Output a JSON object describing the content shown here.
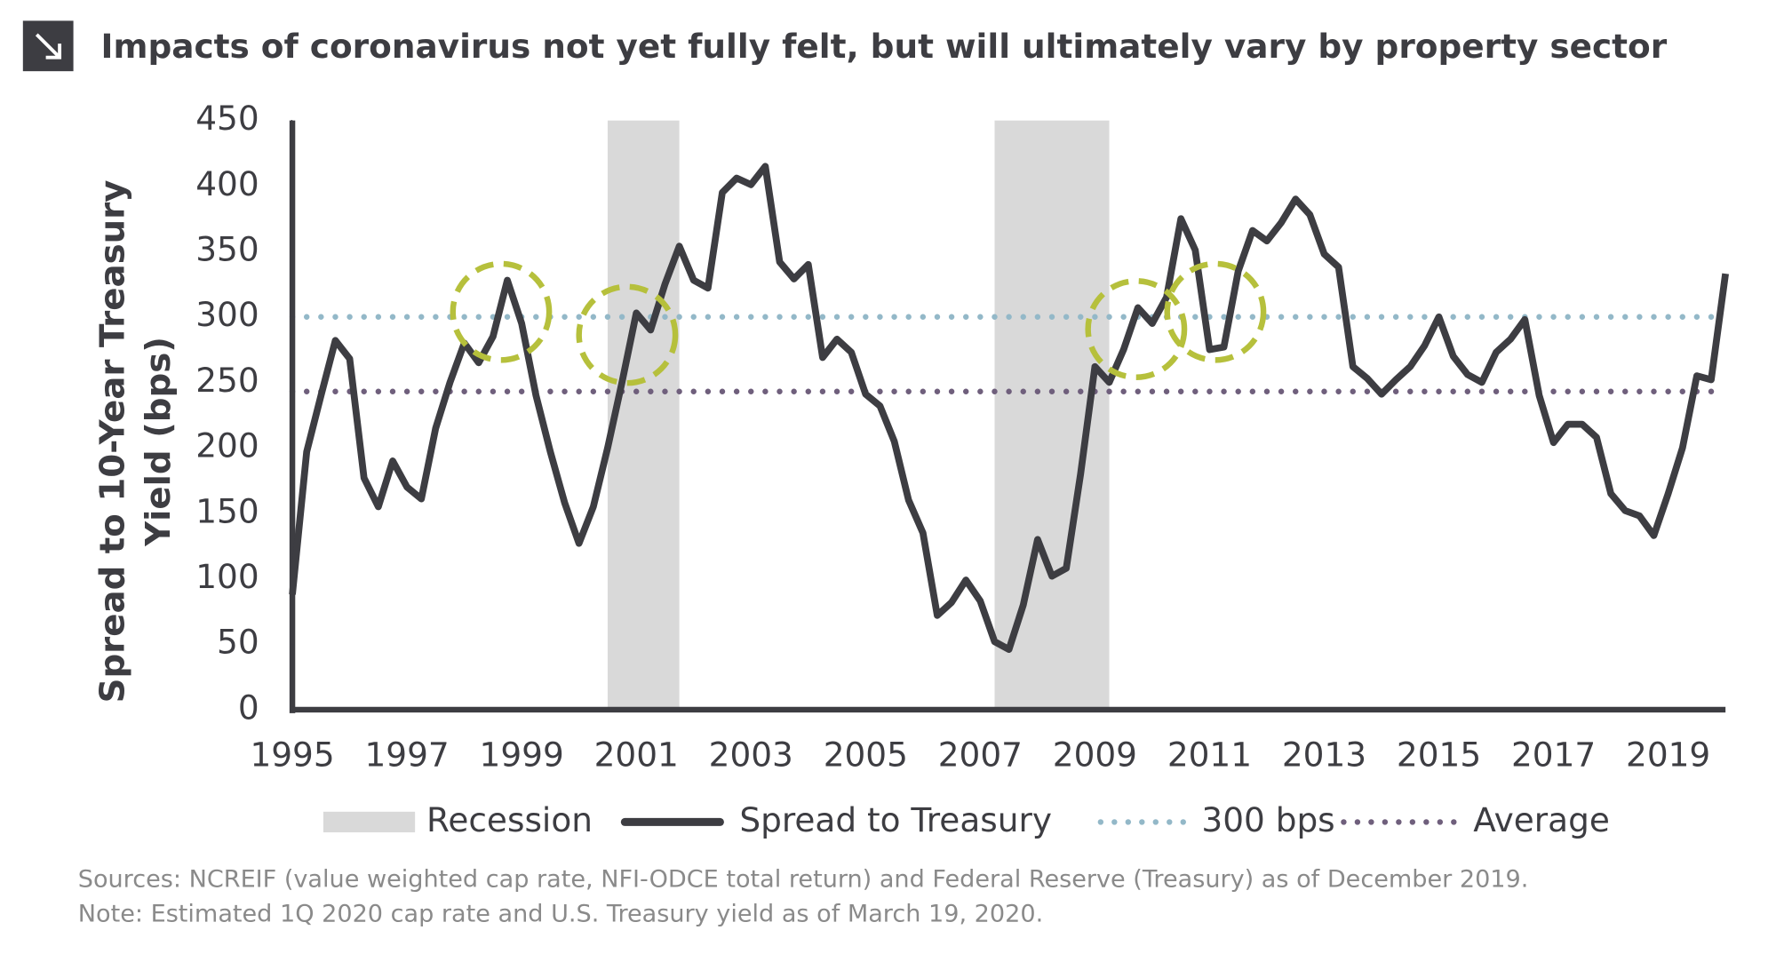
{
  "chart_data": {
    "type": "line",
    "title": "Impacts of coronavirus not yet fully felt, but will ultimately vary by property sector",
    "ylabel": [
      "Spread to 10-Year Treasury",
      "Yield (bps)"
    ],
    "notes": [
      "Sources: NCREIF (value weighted cap rate, NFI-ODCE total return) and Federal Reserve (Treasury) as of December 2019.",
      "Note: Estimated 1Q 2020 cap rate and U.S. Treasury yield as of March 19, 2020."
    ],
    "x": [
      1995.0,
      1995.25,
      1995.5,
      1995.75,
      1996.0,
      1996.25,
      1996.5,
      1996.75,
      1997.0,
      1997.25,
      1997.5,
      1997.75,
      1998.0,
      1998.25,
      1998.5,
      1998.75,
      1999.0,
      1999.25,
      1999.5,
      1999.75,
      2000.0,
      2000.25,
      2000.5,
      2000.75,
      2001.0,
      2001.25,
      2001.5,
      2001.75,
      2002.0,
      2002.25,
      2002.5,
      2002.75,
      2003.0,
      2003.25,
      2003.5,
      2003.75,
      2004.0,
      2004.25,
      2004.5,
      2004.75,
      2005.0,
      2005.25,
      2005.5,
      2005.75,
      2006.0,
      2006.25,
      2006.5,
      2006.75,
      2007.0,
      2007.25,
      2007.5,
      2007.75,
      2008.0,
      2008.25,
      2008.5,
      2008.75,
      2009.0,
      2009.25,
      2009.5,
      2009.75,
      2010.0,
      2010.25,
      2010.5,
      2010.75,
      2011.0,
      2011.25,
      2011.5,
      2011.75,
      2012.0,
      2012.25,
      2012.5,
      2012.75,
      2013.0,
      2013.25,
      2013.5,
      2013.75,
      2014.0,
      2014.25,
      2014.5,
      2014.75,
      2015.0,
      2015.25,
      2015.5,
      2015.75,
      2016.0,
      2016.25,
      2016.5,
      2016.75,
      2017.0,
      2017.25,
      2017.5,
      2017.75,
      2018.0,
      2018.25,
      2018.5,
      2018.75,
      2019.0,
      2019.25,
      2019.5,
      2019.75,
      2020.0
    ],
    "series": [
      {
        "name": "Spread to Treasury",
        "color": "#3d3d42",
        "values": [
          88,
          197,
          240,
          282,
          268,
          177,
          155,
          190,
          170,
          161,
          215,
          250,
          280,
          265,
          285,
          328,
          295,
          240,
          197,
          158,
          127,
          155,
          200,
          250,
          303,
          290,
          325,
          354,
          328,
          322,
          395,
          406,
          401,
          415,
          342,
          329,
          340,
          269,
          283,
          273,
          241,
          232,
          205,
          160,
          135,
          72,
          82,
          99,
          83,
          52,
          46,
          80,
          130,
          102,
          108,
          180,
          262,
          250,
          275,
          307,
          295,
          315,
          375,
          351,
          275,
          277,
          335,
          366,
          358,
          372,
          390,
          378,
          348,
          338,
          262,
          253,
          241,
          252,
          262,
          278,
          300,
          270,
          256,
          250,
          273,
          283,
          298,
          240,
          204,
          218,
          218,
          208,
          165,
          152,
          148,
          133,
          165,
          200,
          255,
          252,
          333
        ]
      }
    ],
    "reference_lines": [
      {
        "name": "300 bps",
        "value": 300,
        "color": "#93b8c8"
      },
      {
        "name": "Average",
        "value": 243,
        "color": "#6f5f7c"
      }
    ],
    "shaded_periods": {
      "name": "Recession",
      "color": "#d9d9d9",
      "periods": [
        {
          "start": 2000.5,
          "end": 2001.75
        },
        {
          "start": 2007.25,
          "end": 2009.25
        }
      ]
    },
    "xlim": [
      1995,
      2020
    ],
    "xticks": [
      1995,
      1997,
      1999,
      2001,
      2003,
      2005,
      2007,
      2009,
      2011,
      2013,
      2015,
      2017,
      2019
    ],
    "ylim": [
      0,
      450
    ],
    "yticks": [
      0,
      50,
      100,
      150,
      200,
      250,
      300,
      350,
      400,
      450
    ],
    "grid": false
  }
}
